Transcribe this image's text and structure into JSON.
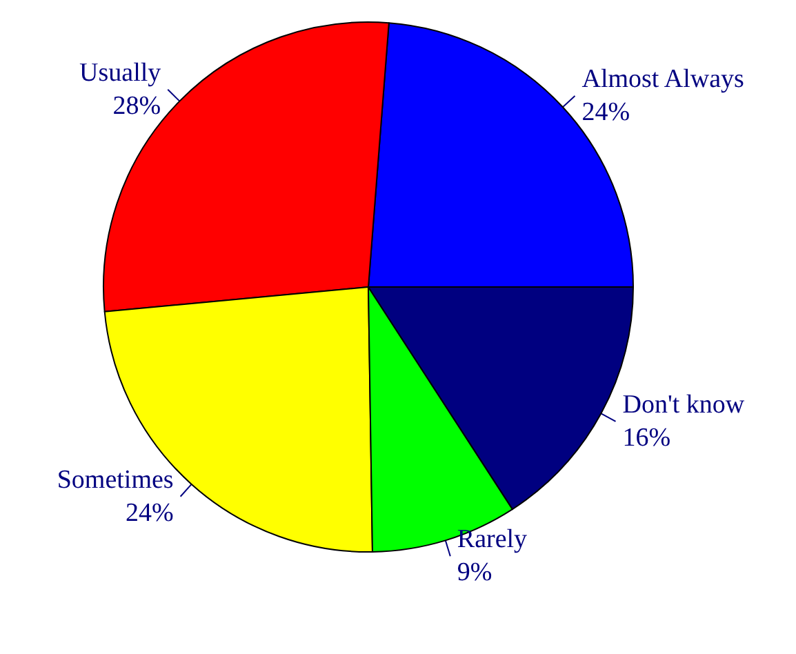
{
  "chart_data": {
    "type": "pie",
    "categories": [
      "Almost Always",
      "Usually",
      "Sometimes",
      "Rarely",
      "Don't know"
    ],
    "values": [
      24,
      28,
      24,
      9,
      16
    ],
    "value_labels": [
      "24%",
      "28%",
      "24%",
      "9%",
      "16%"
    ],
    "colors": [
      "#0000ff",
      "#ff0000",
      "#ffff00",
      "#00ff00",
      "#000080"
    ]
  }
}
